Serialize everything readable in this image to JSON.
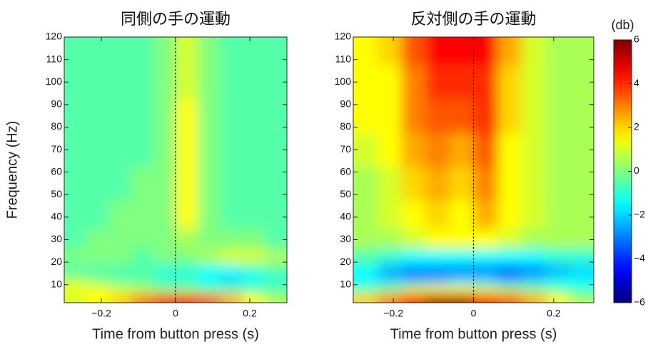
{
  "chart_data": [
    {
      "type": "heatmap",
      "title": "同側の手の運動",
      "x_label": "Time from button press (s)",
      "y_label": "Frequency (Hz)",
      "x": [
        -0.27,
        -0.21,
        -0.15,
        -0.09,
        -0.03,
        0.03,
        0.09,
        0.15,
        0.21,
        0.27
      ],
      "y": [
        4,
        8,
        12,
        16,
        22,
        30,
        40,
        55,
        70,
        85,
        100,
        115
      ],
      "values": [
        [
          1,
          1.5,
          2,
          3,
          4,
          4.5,
          3.5,
          2.5,
          1.5,
          0.5
        ],
        [
          1.5,
          1.5,
          1,
          0.5,
          0,
          0,
          -0.5,
          -0.5,
          -0.5,
          -0.5
        ],
        [
          0.5,
          0,
          -0.5,
          -0.5,
          -1,
          -1,
          -1.5,
          -2,
          -1.5,
          -1
        ],
        [
          -0.5,
          -0.5,
          -0.5,
          -0.5,
          -1,
          -1,
          -1.5,
          -1.5,
          -1,
          -0.5
        ],
        [
          0,
          0,
          0,
          -0.5,
          0,
          0,
          0.5,
          1,
          1,
          0.5
        ],
        [
          -0.5,
          0,
          0,
          0,
          0,
          0.5,
          0,
          0,
          0,
          -0.5
        ],
        [
          -0.5,
          -0.5,
          0,
          0,
          0,
          1.5,
          0,
          -0.5,
          -0.5,
          -0.5
        ],
        [
          -0.5,
          -0.5,
          -0.5,
          0,
          0,
          1.5,
          0,
          -0.5,
          -0.5,
          -0.5
        ],
        [
          -0.5,
          -0.5,
          -0.5,
          -0.5,
          0,
          1.5,
          0,
          -0.5,
          -0.5,
          -0.5
        ],
        [
          -0.5,
          -0.5,
          -0.5,
          -0.5,
          0,
          1.5,
          0,
          -0.5,
          -0.5,
          -0.5
        ],
        [
          -0.5,
          -0.5,
          -0.5,
          -0.5,
          0,
          1,
          0,
          -0.5,
          -0.5,
          -0.5
        ],
        [
          -0.5,
          -0.5,
          -0.5,
          -0.5,
          0,
          1,
          0,
          -0.5,
          -0.5,
          -0.5
        ]
      ],
      "xlim": [
        -0.3,
        0.3
      ],
      "xticks": [
        {
          "value": -0.2,
          "label": "−0.2"
        },
        0,
        0.2
      ],
      "ylim": [
        2,
        120
      ],
      "yticks": [
        10,
        20,
        30,
        40,
        50,
        60,
        70,
        80,
        90,
        100,
        110,
        120
      ],
      "vline": 0
    },
    {
      "type": "heatmap",
      "title": "反対側の手の運動",
      "x_label": "Time from button press (s)",
      "x": [
        -0.27,
        -0.21,
        -0.15,
        -0.09,
        -0.03,
        0.03,
        0.09,
        0.15,
        0.21,
        0.27
      ],
      "y": [
        4,
        8,
        12,
        16,
        22,
        30,
        40,
        55,
        70,
        85,
        100,
        115
      ],
      "values": [
        [
          2,
          3,
          4.5,
          5.5,
          5.5,
          4.5,
          3.5,
          2.5,
          1.5,
          0.5
        ],
        [
          -0.5,
          0,
          1,
          1.5,
          1.5,
          1,
          0.5,
          0,
          -0.5,
          -1
        ],
        [
          -1.5,
          -2,
          -2.5,
          -2.5,
          -2,
          -2,
          -2.5,
          -2,
          -1.5,
          -1.5
        ],
        [
          -1.5,
          -2.5,
          -3,
          -3,
          -3,
          -3,
          -3.5,
          -3,
          -2.5,
          -2
        ],
        [
          -0.5,
          -1,
          -1.5,
          -1.5,
          -1.5,
          -1.5,
          -1.5,
          -1.5,
          -1,
          -1
        ],
        [
          0.5,
          0.5,
          1,
          1.5,
          1.5,
          1.5,
          1,
          0.5,
          0.5,
          0.5
        ],
        [
          0.5,
          1,
          1.5,
          2,
          1.5,
          2.5,
          1.5,
          1,
          0.5,
          0.5
        ],
        [
          0.5,
          1,
          2,
          2.5,
          2,
          3,
          1.5,
          1,
          0.5,
          0.5
        ],
        [
          1,
          1.5,
          2.5,
          3,
          2.5,
          3.5,
          1.5,
          1,
          0.5,
          0.5
        ],
        [
          1.5,
          1.5,
          3,
          3.5,
          3.5,
          4,
          2,
          1,
          0.5,
          0.5
        ],
        [
          1.5,
          1.5,
          3,
          4,
          4,
          4,
          2,
          1,
          0.5,
          0.5
        ],
        [
          1.5,
          2,
          3.5,
          4.5,
          4.5,
          4.5,
          2.5,
          1,
          0.5,
          0.5
        ]
      ],
      "xlim": [
        -0.3,
        0.3
      ],
      "xticks": [
        {
          "value": -0.2,
          "label": "−0.2"
        },
        0,
        0.2
      ],
      "ylim": [
        2,
        120
      ],
      "yticks": [
        10,
        20,
        30,
        40,
        50,
        60,
        70,
        80,
        90,
        100,
        110,
        120
      ],
      "vline": 0,
      "colorbar": {
        "label": "(db)",
        "lim": [
          -6,
          6
        ],
        "ticks": [
          {
            "value": -6,
            "label": "−6"
          },
          {
            "value": -4,
            "label": "−4"
          },
          {
            "value": -2,
            "label": "−2"
          },
          0,
          2,
          4,
          6
        ],
        "colormap": "jet"
      }
    }
  ]
}
